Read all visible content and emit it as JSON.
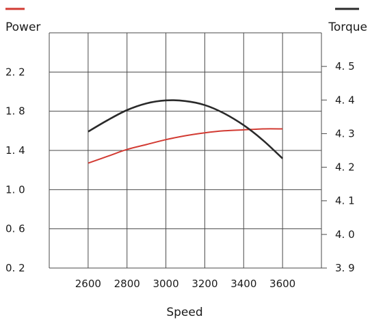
{
  "chart_data": {
    "type": "line",
    "xlabel": "Speed",
    "x": [
      2600,
      2700,
      2800,
      2900,
      3000,
      3100,
      3200,
      3300,
      3400,
      3500,
      3600
    ],
    "x_ticks": [
      "2600",
      "2800",
      "3000",
      "3200",
      "3400",
      "3600"
    ],
    "y_left_label": "Power",
    "y_left_ticks": [
      "2. 2",
      "1. 8",
      "1. 4",
      "1. 0",
      "0. 6",
      "0. 2"
    ],
    "y_left_lim": [
      0.2,
      2.6
    ],
    "y_right_label": "Torque",
    "y_right_ticks": [
      "4. 5",
      "4. 4",
      "4. 3",
      "4. 2",
      "4. 1",
      "4. 0",
      "3. 9"
    ],
    "y_right_lim": [
      3.9,
      4.6
    ],
    "grid": true,
    "series": [
      {
        "name": "Power",
        "axis": "left",
        "color": "#d23a32",
        "values": [
          1.27,
          1.34,
          1.41,
          1.46,
          1.51,
          1.55,
          1.58,
          1.6,
          1.61,
          1.62,
          1.62
        ]
      },
      {
        "name": "Torque",
        "axis": "right",
        "color": "#2a2a2a",
        "values": [
          4.306,
          4.34,
          4.37,
          4.39,
          4.399,
          4.397,
          4.385,
          4.36,
          4.325,
          4.28,
          4.226
        ]
      }
    ]
  }
}
